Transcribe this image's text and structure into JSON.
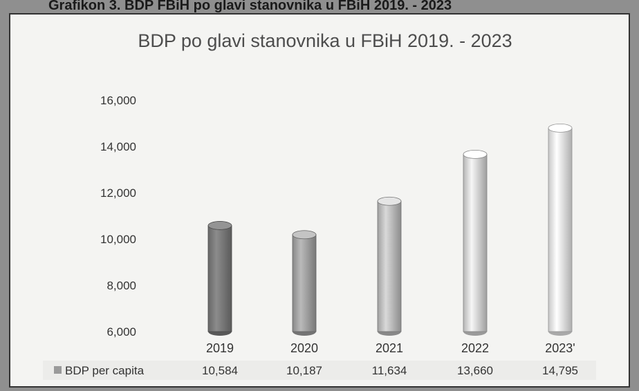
{
  "header": {
    "caption": "Grafikon 3. BDP FBiH po glavi stanovnika u FBiH 2019. - 2023"
  },
  "chart_data": {
    "type": "bar",
    "title": "BDP po glavi stanovnika u FBiH 2019. - 2023",
    "categories": [
      "2019",
      "2020",
      "2021",
      "2022",
      "2023'"
    ],
    "series": [
      {
        "name": "BDP per capita",
        "values": [
          10584,
          10187,
          11634,
          13660,
          14795
        ],
        "value_labels": [
          "10,584",
          "10,187",
          "11,634",
          "13,660",
          "14,795"
        ]
      }
    ],
    "ylim": [
      6000,
      16000
    ],
    "yticks": [
      6000,
      8000,
      10000,
      12000,
      14000,
      16000
    ],
    "ytick_labels": [
      "6,000",
      "8,000",
      "10,000",
      "12,000",
      "14,000",
      "16,000"
    ],
    "grid": false,
    "legend": "bottom-left data table",
    "colors": [
      "#7d7d7d",
      "#a6a6a6",
      "#c2c2c2",
      "#dcdcdc",
      "#f2f2f2"
    ]
  }
}
